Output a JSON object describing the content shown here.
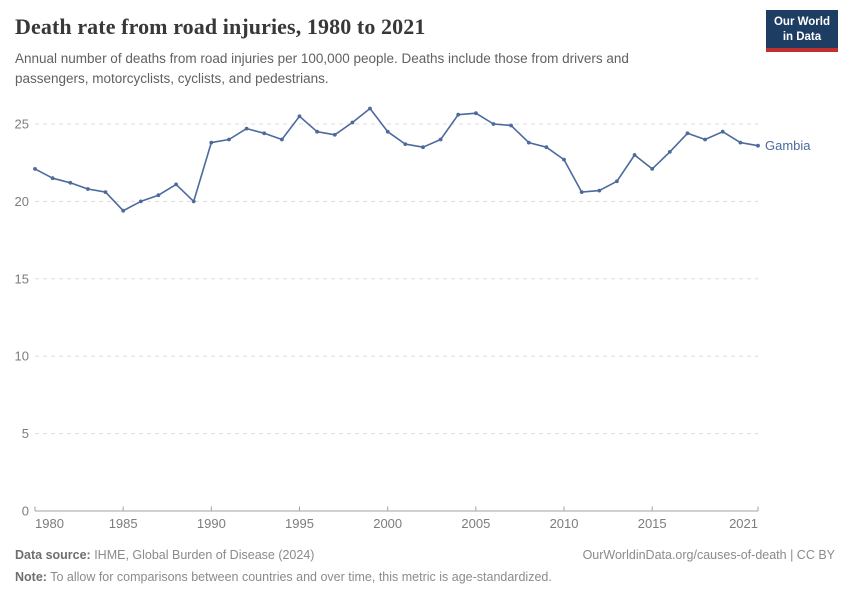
{
  "header": {
    "title": "Death rate from road injuries, 1980 to 2021",
    "subtitle": "Annual number of deaths from road injuries per 100,000 people. Deaths include those from drivers and passengers, motorcyclists, cyclists, and pedestrians."
  },
  "logo": {
    "line1": "Our World",
    "line2": "in Data",
    "background_color": "#1d3d63",
    "accent_color": "#c0302e"
  },
  "chart_data": {
    "type": "line",
    "title": "Death rate from road injuries, 1980 to 2021",
    "xlabel": "",
    "ylabel": "Annual deaths from road injuries per 100,000 people",
    "x": [
      1980,
      1981,
      1982,
      1983,
      1984,
      1985,
      1986,
      1987,
      1988,
      1989,
      1990,
      1991,
      1992,
      1993,
      1994,
      1995,
      1996,
      1997,
      1998,
      1999,
      2000,
      2001,
      2002,
      2003,
      2004,
      2005,
      2006,
      2007,
      2008,
      2009,
      2010,
      2011,
      2012,
      2013,
      2014,
      2015,
      2016,
      2017,
      2018,
      2019,
      2020,
      2021
    ],
    "series": [
      {
        "name": "Gambia",
        "color": "#4C6A9C",
        "values": [
          22.1,
          21.5,
          21.2,
          20.8,
          20.6,
          19.4,
          20.0,
          20.4,
          21.1,
          20.0,
          23.8,
          24.0,
          24.7,
          24.4,
          24.0,
          25.5,
          24.5,
          24.3,
          25.1,
          26.0,
          24.5,
          23.7,
          23.5,
          24.0,
          25.6,
          25.7,
          25.0,
          24.9,
          23.8,
          23.5,
          22.7,
          20.6,
          20.7,
          21.3,
          23.0,
          22.1,
          23.2,
          24.4,
          24.0,
          24.5,
          23.8,
          23.6
        ]
      }
    ],
    "xticks": [
      1980,
      1985,
      1990,
      1995,
      2000,
      2005,
      2010,
      2015,
      2021
    ],
    "yticks": [
      0,
      5,
      10,
      15,
      20,
      25
    ],
    "ylim": [
      0,
      26.5
    ],
    "xlim": [
      1980,
      2021
    ],
    "grid": "horizontal-dashed",
    "legend": "end-of-line-label"
  },
  "footer": {
    "datasource_label": "Data source:",
    "datasource_text": " IHME, Global Burden of Disease (2024)",
    "link": "OurWorldinData.org/causes-of-death | CC BY",
    "note_label": "Note:",
    "note_text": " To allow for comparisons between countries and over time, this metric is age-standardized."
  }
}
